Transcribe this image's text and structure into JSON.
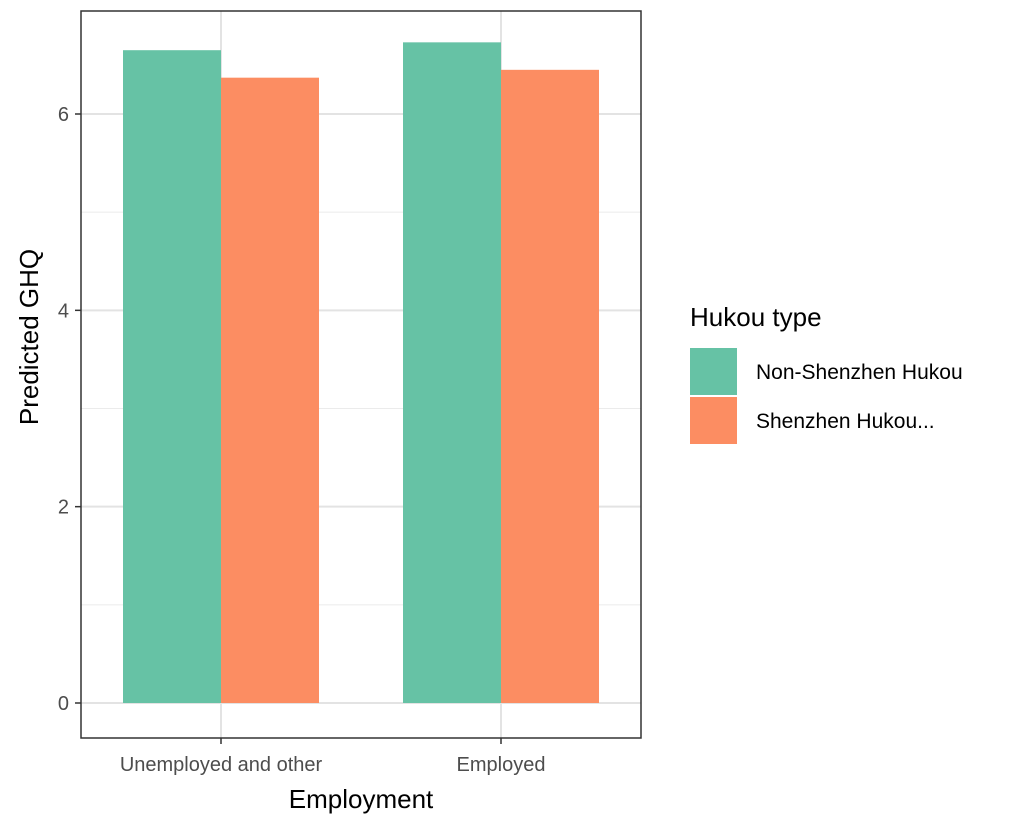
{
  "chart_data": {
    "type": "bar",
    "categories": [
      "Unemployed and other",
      "Employed"
    ],
    "series": [
      {
        "name": "Non-Shenzhen Hukou",
        "color": "#66C2A5",
        "values": [
          6.65,
          6.73
        ]
      },
      {
        "name": "Shenzhen Hukou...",
        "color": "#FC8D62",
        "values": [
          6.37,
          6.45
        ]
      }
    ],
    "xlabel": "Employment",
    "ylabel": "Predicted GHQ",
    "ylim": [
      -0.35,
      7.0
    ],
    "yticks": [
      0,
      2,
      4,
      6
    ],
    "grid": true,
    "legend": {
      "title": "Hukou type",
      "position": "right"
    }
  }
}
